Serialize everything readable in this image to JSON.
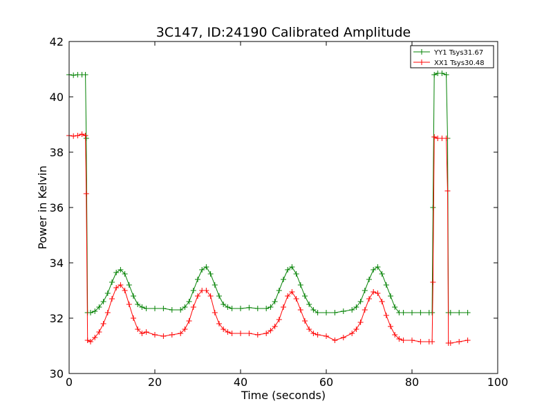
{
  "chart_data": {
    "type": "line",
    "title": "3C147, ID:24190 Calibrated Amplitude",
    "xlabel": "Time (seconds)",
    "ylabel": "Power in Kelvin",
    "xlim": [
      0,
      100
    ],
    "ylim": [
      30,
      42
    ],
    "xticks": [
      "0",
      "20",
      "40",
      "60",
      "80",
      "100"
    ],
    "yticks": [
      "30",
      "32",
      "34",
      "36",
      "38",
      "40",
      "42"
    ],
    "grid": false,
    "legend_position": "top-right",
    "marker": "plus",
    "series": [
      {
        "name": "YY1 Tsys31.67",
        "color": "#008000",
        "x": [
          0,
          1,
          2,
          3,
          3.8,
          4.0,
          4.3,
          5,
          6,
          7,
          8,
          9,
          10,
          11,
          12,
          13,
          14,
          15,
          16,
          17,
          18,
          20,
          22,
          24,
          26,
          27,
          28,
          29,
          30,
          31,
          32,
          33,
          34,
          35,
          36,
          37,
          38,
          40,
          42,
          44,
          46,
          47,
          48,
          49,
          50,
          51,
          52,
          53,
          54,
          55,
          56,
          57,
          58,
          60,
          62,
          64,
          66,
          67,
          68,
          69,
          70,
          71,
          72,
          73,
          74,
          75,
          76,
          77,
          78,
          80,
          82,
          84,
          84.7,
          84.9,
          85.2,
          86,
          87,
          88,
          88.3,
          88.5,
          89,
          91,
          93
        ],
        "y": [
          40.8,
          40.78,
          40.8,
          40.8,
          40.8,
          38.5,
          32.2,
          32.2,
          32.25,
          32.4,
          32.6,
          32.9,
          33.3,
          33.65,
          33.75,
          33.6,
          33.2,
          32.8,
          32.5,
          32.4,
          32.35,
          32.35,
          32.35,
          32.3,
          32.3,
          32.4,
          32.6,
          33.0,
          33.4,
          33.75,
          33.85,
          33.6,
          33.2,
          32.8,
          32.5,
          32.4,
          32.35,
          32.35,
          32.38,
          32.35,
          32.35,
          32.4,
          32.6,
          33.0,
          33.4,
          33.75,
          33.85,
          33.6,
          33.2,
          32.8,
          32.5,
          32.3,
          32.2,
          32.2,
          32.2,
          32.25,
          32.3,
          32.4,
          32.6,
          33.0,
          33.4,
          33.75,
          33.85,
          33.6,
          33.2,
          32.8,
          32.4,
          32.2,
          32.2,
          32.2,
          32.2,
          32.2,
          32.2,
          36.0,
          40.8,
          40.85,
          40.85,
          40.8,
          38.5,
          32.2,
          32.2,
          32.2,
          32.2
        ]
      },
      {
        "name": "XX1 Tsys30.48",
        "color": "#ff0000",
        "x": [
          0,
          1,
          2,
          3,
          3.8,
          4.0,
          4.3,
          5,
          6,
          7,
          8,
          9,
          10,
          11,
          12,
          13,
          14,
          15,
          16,
          17,
          18,
          20,
          22,
          24,
          26,
          27,
          28,
          29,
          30,
          31,
          32,
          33,
          34,
          35,
          36,
          37,
          38,
          40,
          42,
          44,
          46,
          47,
          48,
          49,
          50,
          51,
          52,
          53,
          54,
          55,
          56,
          57,
          58,
          60,
          62,
          64,
          66,
          67,
          68,
          69,
          70,
          71,
          72,
          73,
          74,
          75,
          76,
          77,
          78,
          80,
          82,
          84,
          84.7,
          84.9,
          85.2,
          86,
          87,
          88,
          88.3,
          88.5,
          89,
          91,
          93
        ],
        "y": [
          38.6,
          38.58,
          38.6,
          38.65,
          38.6,
          36.5,
          31.2,
          31.15,
          31.3,
          31.5,
          31.8,
          32.2,
          32.7,
          33.1,
          33.2,
          33.0,
          32.5,
          32.0,
          31.6,
          31.45,
          31.5,
          31.4,
          31.35,
          31.4,
          31.45,
          31.6,
          31.9,
          32.4,
          32.8,
          33.0,
          33.0,
          32.8,
          32.2,
          31.8,
          31.6,
          31.5,
          31.45,
          31.45,
          31.45,
          31.4,
          31.45,
          31.55,
          31.7,
          31.95,
          32.4,
          32.8,
          32.95,
          32.7,
          32.3,
          31.9,
          31.6,
          31.45,
          31.4,
          31.35,
          31.2,
          31.3,
          31.45,
          31.6,
          31.85,
          32.3,
          32.7,
          32.95,
          32.9,
          32.6,
          32.1,
          31.7,
          31.4,
          31.25,
          31.2,
          31.2,
          31.15,
          31.15,
          31.15,
          33.3,
          38.55,
          38.5,
          38.5,
          38.5,
          36.6,
          31.1,
          31.1,
          31.15,
          31.2
        ]
      }
    ]
  }
}
